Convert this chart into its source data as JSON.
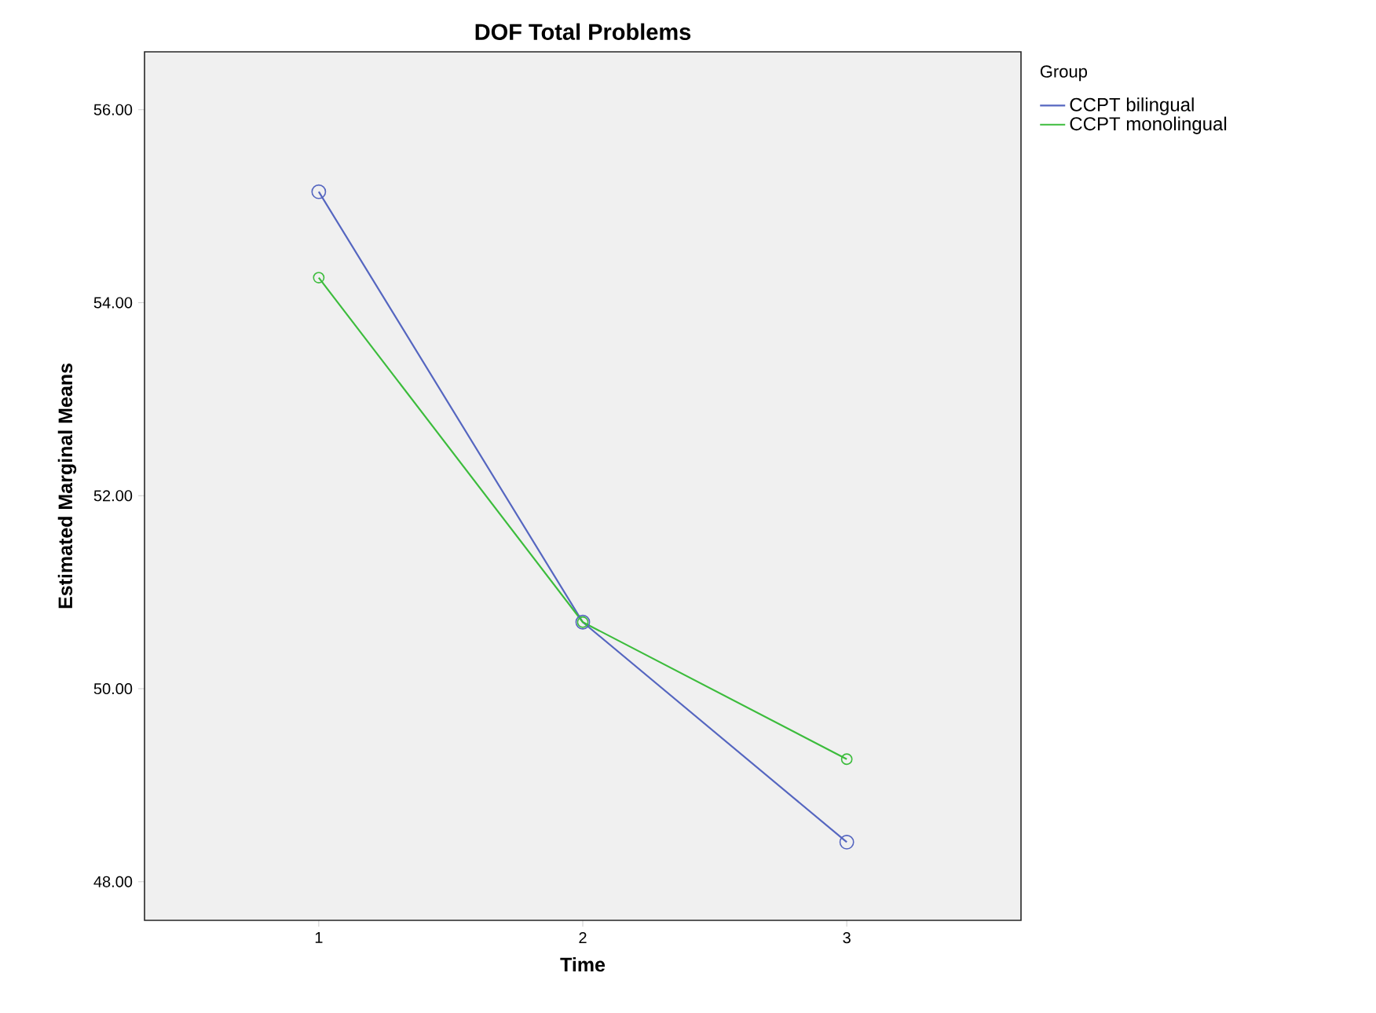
{
  "chart_data": {
    "type": "line",
    "title": "DOF Total Problems",
    "xlabel": "Time",
    "ylabel": "Estimated Marginal Means",
    "legend_title": "Group",
    "categories": [
      "1",
      "2",
      "3"
    ],
    "series": [
      {
        "name": "CCPT bilingual",
        "color": "#5566c0",
        "values": [
          55.15,
          50.69,
          48.41
        ]
      },
      {
        "name": "CCPT monolingual",
        "color": "#3cbc3c",
        "values": [
          54.26,
          50.69,
          49.27
        ]
      }
    ],
    "ylim": [
      47.6,
      56.6
    ],
    "yticks": [
      {
        "value": 48,
        "label": "48.00"
      },
      {
        "value": 50,
        "label": "50.00"
      },
      {
        "value": 52,
        "label": "52.00"
      },
      {
        "value": 54,
        "label": "54.00"
      },
      {
        "value": 56,
        "label": "56.00"
      }
    ],
    "marker": "circle",
    "grid": false,
    "legend": "top right"
  }
}
